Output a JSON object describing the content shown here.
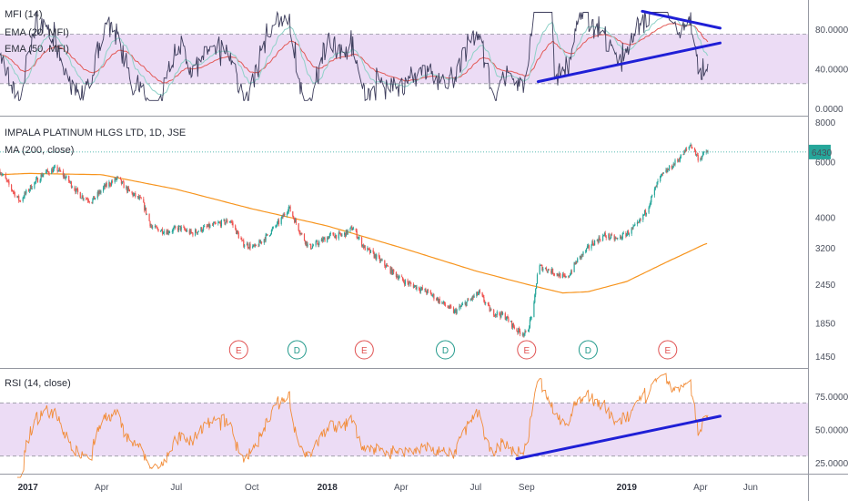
{
  "chart_data": {
    "type": "candlestick",
    "colors": {
      "up": "#26a69a",
      "down": "#ef5350",
      "ma200": "#f7941d",
      "mfi": "#3d3d5c",
      "ema20": "#8fd1c8",
      "ema50": "#e35a57",
      "rsi": "#f28c38",
      "band": "#ecdcf5",
      "trendline": "#1f1fd6",
      "earnings_marker": "#e05252",
      "dividend_marker": "#239a8c",
      "price_tag": "#26a69a"
    },
    "x_axis": {
      "labels": [
        {
          "date": "2017-01-01",
          "text": "2017",
          "year": true
        },
        {
          "date": "2017-04-01",
          "text": "Apr"
        },
        {
          "date": "2017-07-01",
          "text": "Jul"
        },
        {
          "date": "2017-10-01",
          "text": "Oct"
        },
        {
          "date": "2018-01-01",
          "text": "2018",
          "year": true
        },
        {
          "date": "2018-04-01",
          "text": "Apr"
        },
        {
          "date": "2018-07-01",
          "text": "Jul"
        },
        {
          "date": "2018-09-01",
          "text": "Sep"
        },
        {
          "date": "2019-01-01",
          "text": "2019",
          "year": true
        },
        {
          "date": "2019-04-01",
          "text": "Apr"
        },
        {
          "date": "2019-06-01",
          "text": "Jun"
        }
      ]
    },
    "mfi_pane": {
      "labels": [
        "MFI (14)",
        "EMA (20, MFI)",
        "EMA (50, MFI)"
      ],
      "y_ticks": [
        {
          "value": 0,
          "text": "0.0000"
        },
        {
          "value": 40,
          "text": "40.0000"
        },
        {
          "value": 80,
          "text": "80.0000"
        }
      ],
      "band": [
        25,
        75
      ],
      "ylim": [
        0,
        100
      ],
      "trendlines": [
        {
          "from": [
            "2018-09-15",
            27
          ],
          "to": [
            "2019-04-25",
            66
          ]
        },
        {
          "from": [
            "2019-01-20",
            98
          ],
          "to": [
            "2019-04-25",
            81
          ]
        }
      ]
    },
    "price_pane": {
      "title": "IMPALA PLATINUM HLGS LTD, 1D, JSE",
      "ma_label": "MA (200, close)",
      "scale": "log",
      "y_ticks": [
        1450,
        1850,
        2450,
        3200,
        4000,
        6000,
        8000
      ],
      "y_tick_text": [
        "1450",
        "1850",
        "2450",
        "3200",
        "4000",
        "6000",
        "8000"
      ],
      "last_price": 6430,
      "last_price_text": "6430",
      "price_path": [
        [
          "2016-11-28",
          5600
        ],
        [
          "2016-12-10",
          5000
        ],
        [
          "2016-12-22",
          4500
        ],
        [
          "2017-01-05",
          5000
        ],
        [
          "2017-01-20",
          5500
        ],
        [
          "2017-02-05",
          5700
        ],
        [
          "2017-02-20",
          5200
        ],
        [
          "2017-03-05",
          4700
        ],
        [
          "2017-03-20",
          4500
        ],
        [
          "2017-04-05",
          5000
        ],
        [
          "2017-04-20",
          5300
        ],
        [
          "2017-05-05",
          4800
        ],
        [
          "2017-05-20",
          4500
        ],
        [
          "2017-06-01",
          3700
        ],
        [
          "2017-06-20",
          3600
        ],
        [
          "2017-07-05",
          3700
        ],
        [
          "2017-07-20",
          3550
        ],
        [
          "2017-08-05",
          3700
        ],
        [
          "2017-08-20",
          3800
        ],
        [
          "2017-09-05",
          3900
        ],
        [
          "2017-09-20",
          3300
        ],
        [
          "2017-10-05",
          3200
        ],
        [
          "2017-10-20",
          3500
        ],
        [
          "2017-11-05",
          3900
        ],
        [
          "2017-11-15",
          4300
        ],
        [
          "2017-12-01",
          3500
        ],
        [
          "2017-12-10",
          3200
        ],
        [
          "2017-12-20",
          3300
        ],
        [
          "2018-01-05",
          3500
        ],
        [
          "2018-01-20",
          3500
        ],
        [
          "2018-02-01",
          3700
        ],
        [
          "2018-02-15",
          3200
        ],
        [
          "2018-03-01",
          3000
        ],
        [
          "2018-03-20",
          2700
        ],
        [
          "2018-04-05",
          2500
        ],
        [
          "2018-04-20",
          2400
        ],
        [
          "2018-05-05",
          2300
        ],
        [
          "2018-05-20",
          2150
        ],
        [
          "2018-06-05",
          2000
        ],
        [
          "2018-06-20",
          2150
        ],
        [
          "2018-07-05",
          2300
        ],
        [
          "2018-07-20",
          2000
        ],
        [
          "2018-08-05",
          1950
        ],
        [
          "2018-08-20",
          1750
        ],
        [
          "2018-09-01",
          1700
        ],
        [
          "2018-09-10",
          2100
        ],
        [
          "2018-09-15",
          2800
        ],
        [
          "2018-10-01",
          2700
        ],
        [
          "2018-10-20",
          2550
        ],
        [
          "2018-11-01",
          2900
        ],
        [
          "2018-11-20",
          3300
        ],
        [
          "2018-12-05",
          3500
        ],
        [
          "2018-12-20",
          3400
        ],
        [
          "2019-01-05",
          3600
        ],
        [
          "2019-01-15",
          3800
        ],
        [
          "2019-01-25",
          4200
        ],
        [
          "2019-02-10",
          5300
        ],
        [
          "2019-02-25",
          5800
        ],
        [
          "2019-03-10",
          6300
        ],
        [
          "2019-03-20",
          6800
        ],
        [
          "2019-03-30",
          6100
        ],
        [
          "2019-04-08",
          6430
        ]
      ],
      "ma200_path": [
        [
          "2016-11-28",
          5450
        ],
        [
          "2017-01-01",
          5500
        ],
        [
          "2017-04-01",
          5450
        ],
        [
          "2017-07-01",
          4900
        ],
        [
          "2017-10-01",
          4250
        ],
        [
          "2018-01-01",
          3750
        ],
        [
          "2018-04-01",
          3200
        ],
        [
          "2018-07-01",
          2700
        ],
        [
          "2018-09-01",
          2450
        ],
        [
          "2018-10-15",
          2300
        ],
        [
          "2018-11-15",
          2320
        ],
        [
          "2019-01-01",
          2500
        ],
        [
          "2019-02-15",
          2850
        ],
        [
          "2019-04-08",
          3300
        ]
      ],
      "events": [
        {
          "date": "2017-09-15",
          "type": "E"
        },
        {
          "date": "2017-11-25",
          "type": "D"
        },
        {
          "date": "2018-02-15",
          "type": "E"
        },
        {
          "date": "2018-05-25",
          "type": "D"
        },
        {
          "date": "2018-09-01",
          "type": "E"
        },
        {
          "date": "2018-11-15",
          "type": "D"
        },
        {
          "date": "2019-02-20",
          "type": "E"
        }
      ]
    },
    "rsi_pane": {
      "label": "RSI (14, close)",
      "y_ticks": [
        {
          "value": 25,
          "text": "25.0000"
        },
        {
          "value": 50,
          "text": "50.0000"
        },
        {
          "value": 75,
          "text": "75.0000"
        }
      ],
      "band": [
        30,
        70
      ],
      "ylim": [
        14,
        95
      ],
      "trendline": {
        "from": [
          "2018-08-20",
          28
        ],
        "to": [
          "2019-04-25",
          60
        ]
      }
    }
  }
}
